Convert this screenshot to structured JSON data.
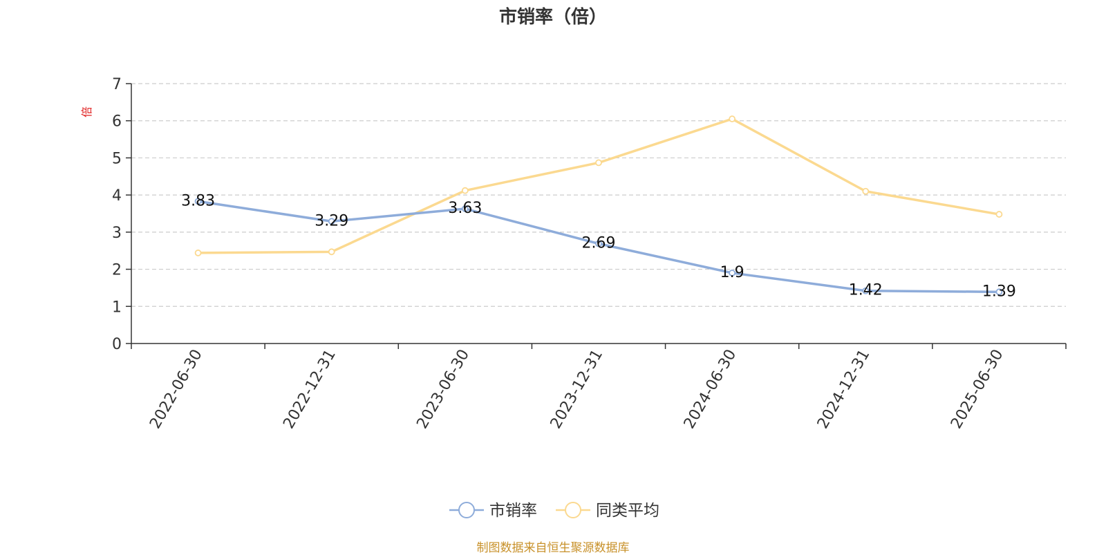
{
  "colors": {
    "series_1": "#8eacda",
    "series_2": "#fbd990",
    "ylabel": "#e02020",
    "axis": "#333333",
    "grid": "#cccccc",
    "source": "#c8912a"
  },
  "chart_data": {
    "type": "line",
    "title": "市销率（倍）",
    "ylabel": "倍",
    "xlabel": "",
    "categories": [
      "2022-06-30",
      "2022-12-31",
      "2023-06-30",
      "2023-12-31",
      "2024-06-30",
      "2024-12-31",
      "2025-06-30"
    ],
    "ylim": [
      0,
      7
    ],
    "yticks": [
      0,
      1,
      2,
      3,
      4,
      5,
      6,
      7
    ],
    "grid": "horizontal-dashed",
    "legend_position": "bottom-center",
    "series": [
      {
        "name": "市销率",
        "values": [
          3.83,
          3.29,
          3.63,
          2.69,
          1.9,
          1.42,
          1.39
        ],
        "data_labels": [
          "3.83",
          "3.29",
          "3.63",
          "2.69",
          "1.9",
          "1.42",
          "1.39"
        ]
      },
      {
        "name": "同类平均",
        "values": [
          2.44,
          2.47,
          4.12,
          4.87,
          6.05,
          4.1,
          3.48
        ]
      }
    ]
  },
  "source_note": "制图数据来自恒生聚源数据库"
}
